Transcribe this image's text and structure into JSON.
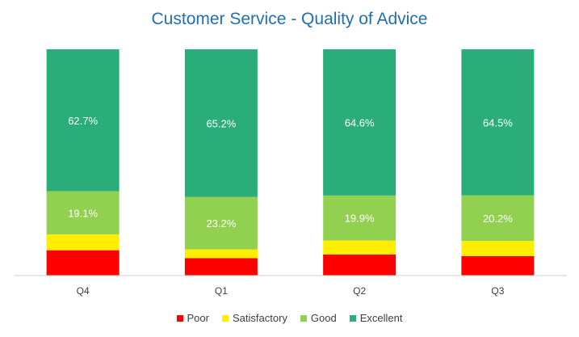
{
  "chart_data": {
    "type": "bar",
    "stacked": true,
    "title": "Customer Service - Quality of Advice",
    "categories": [
      "Q4",
      "Q1",
      "Q2",
      "Q3"
    ],
    "ylim": [
      0,
      100
    ],
    "grid": false,
    "legend_position": "bottom",
    "series": [
      {
        "name": "Poor",
        "color": "#ff0000",
        "values": [
          11.2,
          7.7,
          9.3,
          8.6
        ],
        "labels": [
          "",
          "",
          "",
          ""
        ]
      },
      {
        "name": "Satisfactory",
        "color": "#ffee00",
        "values": [
          7.0,
          3.9,
          6.2,
          6.7
        ],
        "labels": [
          "",
          "",
          "",
          ""
        ]
      },
      {
        "name": "Good",
        "color": "#92d050",
        "values": [
          19.1,
          23.2,
          19.9,
          20.2
        ],
        "labels": [
          "19.1%",
          "23.2%",
          "19.9%",
          "20.2%"
        ]
      },
      {
        "name": "Excellent",
        "color": "#2aad79",
        "values": [
          62.7,
          65.2,
          64.6,
          64.5
        ],
        "labels": [
          "62.7%",
          "65.2%",
          "64.6%",
          "64.5%"
        ]
      }
    ]
  }
}
